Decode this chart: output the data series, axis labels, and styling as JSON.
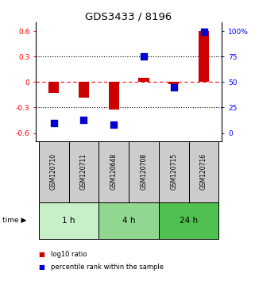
{
  "title": "GDS3433 / 8196",
  "samples": [
    "GSM120710",
    "GSM120711",
    "GSM120648",
    "GSM120708",
    "GSM120715",
    "GSM120716"
  ],
  "log10_ratio": [
    -0.13,
    -0.18,
    -0.32,
    0.05,
    -0.03,
    0.6
  ],
  "percentile_rank": [
    10,
    13,
    8,
    75,
    45,
    99
  ],
  "time_groups": [
    {
      "label": "1 h",
      "cols": [
        0,
        1
      ],
      "color": "#c8f0c8"
    },
    {
      "label": "4 h",
      "cols": [
        2,
        3
      ],
      "color": "#90d890"
    },
    {
      "label": "24 h",
      "cols": [
        4,
        5
      ],
      "color": "#50c050"
    }
  ],
  "bar_color": "#cc0000",
  "dot_color": "#0000cc",
  "ylim_left": [
    -0.7,
    0.7
  ],
  "yticks_left": [
    -0.6,
    -0.3,
    0.0,
    0.3,
    0.6
  ],
  "ytick_labels_left": [
    "-0.6",
    "-0.3",
    "0",
    "0.3",
    "0.6"
  ],
  "yticks_right_pct": [
    0,
    25,
    50,
    75,
    100
  ],
  "ytick_labels_right": [
    "0",
    "25",
    "50",
    "75",
    "100%"
  ],
  "bar_width": 0.35,
  "dot_size": 28,
  "sample_box_color": "#cccccc",
  "legend_items": [
    {
      "color": "#cc0000",
      "label": " log10 ratio"
    },
    {
      "color": "#0000cc",
      "label": " percentile rank within the sample"
    }
  ]
}
